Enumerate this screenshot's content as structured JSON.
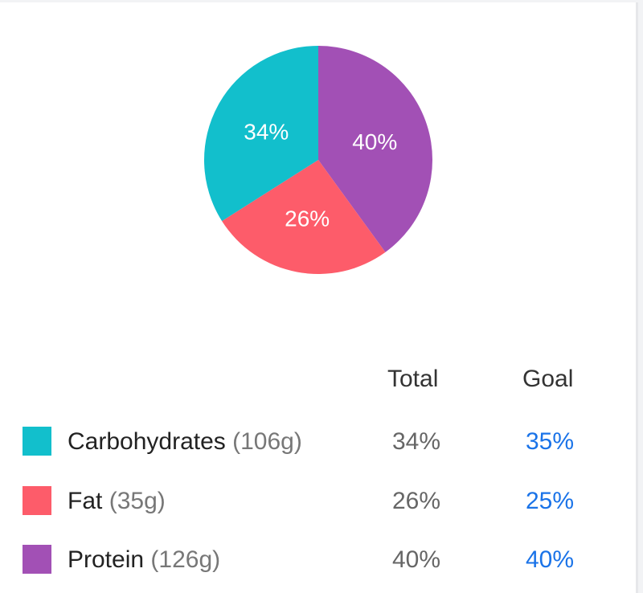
{
  "chart_data": {
    "type": "pie",
    "slices": [
      {
        "name": "Carbohydrates",
        "value": 34,
        "label": "34%",
        "color": "#12bfcc"
      },
      {
        "name": "Fat",
        "value": 26,
        "label": "26%",
        "color": "#fd5c6a"
      },
      {
        "name": "Protein",
        "value": 40,
        "label": "40%",
        "color": "#a250b5"
      }
    ]
  },
  "table": {
    "headers": {
      "total": "Total",
      "goal": "Goal"
    },
    "rows": [
      {
        "name": "Carbohydrates",
        "grams": "(106g)",
        "total": "34%",
        "goal": "35%",
        "color": "#12bfcc"
      },
      {
        "name": "Fat",
        "grams": "(35g)",
        "total": "26%",
        "goal": "25%",
        "color": "#fd5c6a"
      },
      {
        "name": "Protein",
        "grams": "(126g)",
        "total": "40%",
        "goal": "40%",
        "color": "#a250b5"
      }
    ]
  }
}
